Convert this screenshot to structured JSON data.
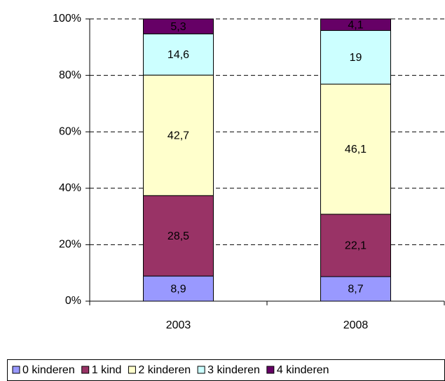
{
  "chart_data": {
    "type": "bar",
    "stacked": true,
    "categories": [
      "2003",
      "2008"
    ],
    "series": [
      {
        "name": "0 kinderen",
        "color": "#9999ff",
        "values": [
          8.9,
          8.7
        ],
        "value_labels": [
          "8,9",
          "8,7"
        ]
      },
      {
        "name": "1 kind",
        "color": "#993366",
        "values": [
          28.5,
          22.1
        ],
        "value_labels": [
          "28,5",
          "22,1"
        ]
      },
      {
        "name": "2 kinderen",
        "color": "#ffffcc",
        "values": [
          42.7,
          46.1
        ],
        "value_labels": [
          "42,7",
          "46,1"
        ]
      },
      {
        "name": "3 kinderen",
        "color": "#ccffff",
        "values": [
          14.6,
          19
        ],
        "value_labels": [
          "14,6",
          "19"
        ]
      },
      {
        "name": "4 kinderen",
        "color": "#660066",
        "values": [
          5.3,
          4.1
        ],
        "value_labels": [
          "5,3",
          "4,1"
        ]
      }
    ],
    "ylim": [
      0,
      100
    ],
    "yticks": [
      {
        "value": 0,
        "label": "0%"
      },
      {
        "value": 20,
        "label": "20%"
      },
      {
        "value": 40,
        "label": "40%"
      },
      {
        "value": 60,
        "label": "60%"
      },
      {
        "value": 80,
        "label": "80%"
      },
      {
        "value": 100,
        "label": "100%"
      }
    ],
    "grid": true,
    "legend": "bottom"
  }
}
